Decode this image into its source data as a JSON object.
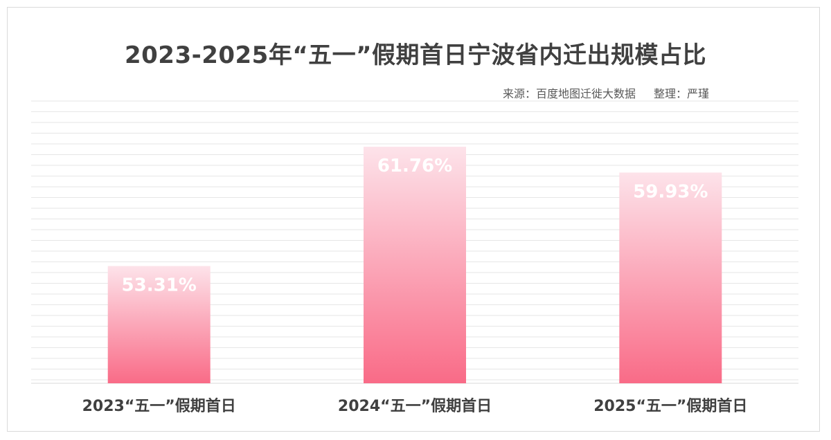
{
  "chart_data": {
    "type": "bar",
    "title": "2023-2025年“五一”假期首日宁波省内迁出规模占比",
    "source": "来源：百度地图迁徙大数据",
    "compiler": "整理：严瑾",
    "categories": [
      "2023“五一”假期首日",
      "2024“五一”假期首日",
      "2025“五一”假期首日"
    ],
    "values": [
      53.31,
      61.76,
      59.93
    ],
    "value_labels": [
      "53.31%",
      "61.76%",
      "59.93%"
    ],
    "ylim": [
      45,
      65
    ],
    "grid": true,
    "legend": "none",
    "colors": {
      "bar_top": "#fde3ea",
      "bar_bottom": "#f96b87",
      "grid": "#e6e6e6",
      "label": "#ffffff",
      "axis_text": "#404040"
    }
  }
}
